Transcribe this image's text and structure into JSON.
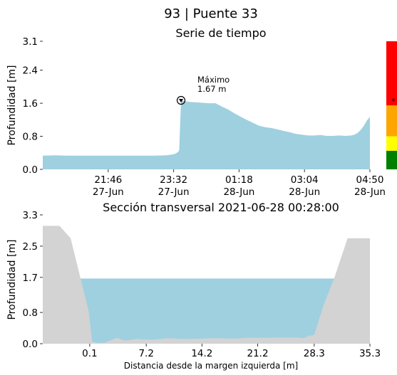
{
  "title": "93 | Puente 33",
  "timeseries": {
    "type": "area",
    "title": "Serie de tiempo",
    "ylabel": "Profundidad [m]",
    "ylim": [
      0,
      3.1
    ],
    "yticks": [
      "0.0",
      "0.8",
      "1.6",
      "2.4",
      "3.1"
    ],
    "yticks_values": [
      0,
      0.8,
      1.6,
      2.4,
      3.1
    ],
    "xticks": [
      {
        "time": "21:46",
        "date": "27-Jun"
      },
      {
        "time": "23:32",
        "date": "27-Jun"
      },
      {
        "time": "01:18",
        "date": "28-Jun"
      },
      {
        "time": "03:04",
        "date": "28-Jun"
      },
      {
        "time": "04:50",
        "date": "28-Jun"
      }
    ],
    "xtick_minutes": [
      106,
      212,
      318,
      424,
      530
    ],
    "x_range_minutes": [
      0,
      530
    ],
    "fill_color": "#9ed0e0",
    "annotation": {
      "label": "Máximo",
      "value": "1.67 m",
      "x": 224,
      "y": 1.67
    },
    "x": [
      0,
      20,
      40,
      60,
      80,
      100,
      120,
      140,
      160,
      180,
      200,
      210,
      215,
      219,
      221,
      224,
      230,
      240,
      250,
      260,
      270,
      280,
      290,
      300,
      310,
      320,
      330,
      340,
      350,
      360,
      370,
      380,
      390,
      400,
      410,
      420,
      430,
      440,
      450,
      460,
      470,
      480,
      490,
      500,
      505,
      510,
      515,
      520,
      525,
      530
    ],
    "y": [
      0.33,
      0.34,
      0.33,
      0.33,
      0.33,
      0.33,
      0.33,
      0.33,
      0.33,
      0.33,
      0.34,
      0.36,
      0.38,
      0.42,
      0.46,
      1.67,
      1.65,
      1.63,
      1.62,
      1.61,
      1.6,
      1.6,
      1.52,
      1.45,
      1.36,
      1.28,
      1.2,
      1.13,
      1.06,
      1.02,
      1.0,
      0.97,
      0.93,
      0.9,
      0.86,
      0.84,
      0.82,
      0.82,
      0.83,
      0.81,
      0.81,
      0.82,
      0.81,
      0.82,
      0.84,
      0.88,
      0.95,
      1.05,
      1.18,
      1.27
    ]
  },
  "alert_bar": {
    "colors": [
      "#008000",
      "#ffff00",
      "#ffa500",
      "#ff0000"
    ],
    "thresholds": [
      0,
      0.45,
      0.8,
      1.55,
      3.1
    ],
    "marker_level": 1.67
  },
  "cross_section": {
    "type": "area",
    "title": "Sección transversal 2021-06-28 00:28:00",
    "ylabel": "Profundidad [m]",
    "xlabel": "Distancia desde la margen izquierda [m]",
    "ylim": [
      0,
      3.3
    ],
    "yticks": [
      "0.0",
      "0.8",
      "1.7",
      "2.5",
      "3.3"
    ],
    "yticks_values": [
      0,
      0.8,
      1.7,
      2.5,
      3.3
    ],
    "xticks": [
      "0.1",
      "7.2",
      "14.2",
      "21.2",
      "28.3",
      "35.3"
    ],
    "xticks_values": [
      0.1,
      7.2,
      14.2,
      21.2,
      28.3,
      35.3
    ],
    "xlim": [
      -5.8,
      35.3
    ],
    "water_level": 1.67,
    "water_color": "#9ed0e0",
    "ground_color": "#d3d3d3",
    "ground_x": [
      -5.8,
      -3.7,
      -2.3,
      0.0,
      0.4,
      1.0,
      2.0,
      3.5,
      4.5,
      6.0,
      8.0,
      10.0,
      12.0,
      14.0,
      16.0,
      18.0,
      20.0,
      22.0,
      24.0,
      26.0,
      27.0,
      27.6,
      28.3,
      29.5,
      30.8,
      32.5,
      35.3
    ],
    "ground_y": [
      3.02,
      3.02,
      2.7,
      0.8,
      0.05,
      0.02,
      0.03,
      0.15,
      0.08,
      0.12,
      0.1,
      0.14,
      0.12,
      0.13,
      0.14,
      0.13,
      0.15,
      0.15,
      0.16,
      0.16,
      0.14,
      0.2,
      0.22,
      1.0,
      1.67,
      2.7,
      2.7
    ]
  }
}
